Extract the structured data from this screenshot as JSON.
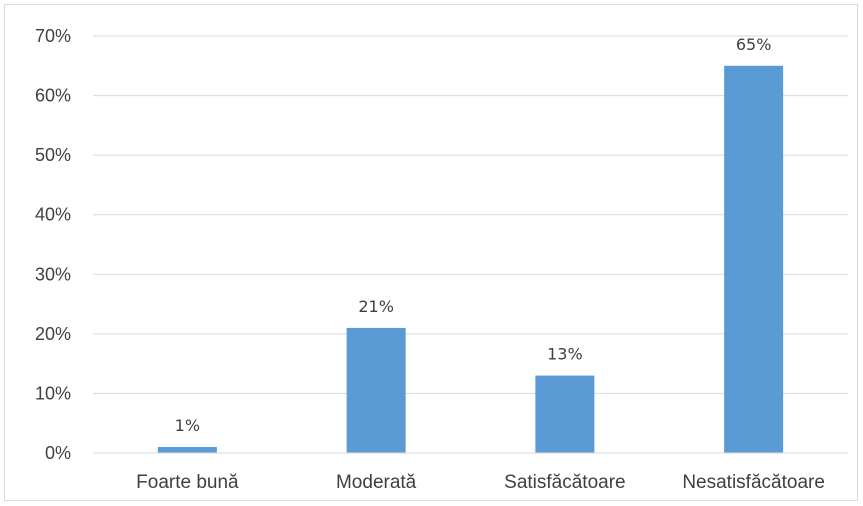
{
  "chart_data": {
    "type": "bar",
    "categories": [
      "Foarte bună",
      "Moderată",
      "Satisfăcătoare",
      "Nesatisfăcătoare"
    ],
    "values": [
      1,
      21,
      13,
      65
    ],
    "data_labels": [
      "1%",
      "21%",
      "13%",
      "65%"
    ],
    "title": "",
    "xlabel": "",
    "ylabel": "",
    "ylim": [
      0,
      70
    ],
    "yticks": [
      0,
      10,
      20,
      30,
      40,
      50,
      60,
      70
    ],
    "ytick_labels": [
      "0%",
      "10%",
      "20%",
      "30%",
      "40%",
      "50%",
      "60%",
      "70%"
    ],
    "grid": true,
    "legend": "none",
    "colors": {
      "bar": "#5b9bd5",
      "grid": "#d9d9d9",
      "axis": "#d9d9d9",
      "text": "#404040"
    }
  }
}
